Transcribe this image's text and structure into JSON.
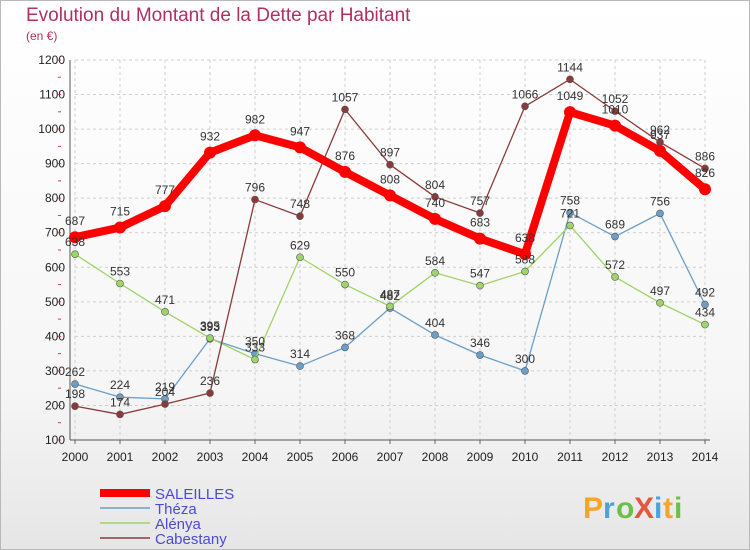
{
  "chart_data": {
    "type": "line",
    "title": "Evolution du Montant de la Dette par Habitant",
    "ylabel": "(en €)",
    "xlabel": "",
    "x": [
      2000,
      2001,
      2002,
      2003,
      2004,
      2005,
      2006,
      2007,
      2008,
      2009,
      2010,
      2011,
      2012,
      2013,
      2014
    ],
    "ylim": [
      100,
      1200
    ],
    "yticks": [
      100,
      200,
      300,
      400,
      500,
      600,
      700,
      800,
      900,
      1000,
      1100,
      1200
    ],
    "grid": true,
    "legend_position": "bottom-left",
    "series": [
      {
        "name": "SALEILLES",
        "color": "#ff0000",
        "values": [
          687,
          715,
          777,
          932,
          982,
          947,
          876,
          808,
          740,
          683,
          638,
          1049,
          1010,
          937,
          826
        ]
      },
      {
        "name": "Théza",
        "color": "#6b9fc8",
        "values": [
          262,
          224,
          219,
          393,
          350,
          314,
          368,
          482,
          404,
          346,
          300,
          758,
          689,
          756,
          492
        ]
      },
      {
        "name": "Alénya",
        "color": "#9ed46a",
        "values": [
          638,
          553,
          471,
          395,
          333,
          629,
          550,
          487,
          584,
          547,
          588,
          721,
          572,
          497,
          434
        ]
      },
      {
        "name": "Cabestany",
        "color": "#8b3a3a",
        "values": [
          198,
          174,
          204,
          236,
          796,
          748,
          1057,
          897,
          804,
          757,
          1066,
          1144,
          1052,
          962,
          886
        ]
      }
    ]
  },
  "logo": {
    "text": "ProXiti"
  }
}
